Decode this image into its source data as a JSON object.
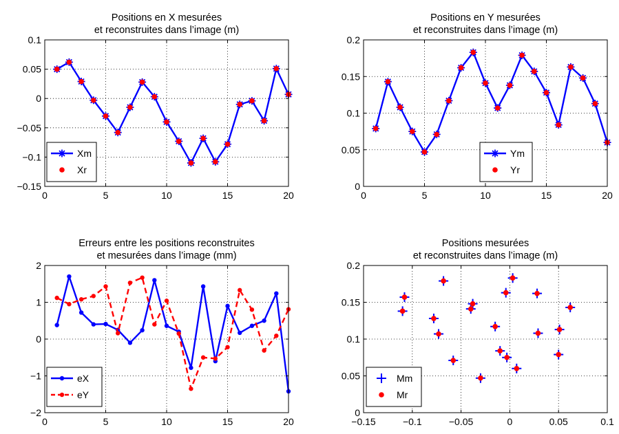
{
  "chart_data": [
    {
      "type": "line",
      "title": [
        "Positions en X mesurées",
        "et reconstruites dans l’image (m)"
      ],
      "xlim": [
        0,
        20
      ],
      "ylim": [
        -0.15,
        0.1
      ],
      "xticks": [
        0,
        5,
        10,
        15,
        20
      ],
      "xtick_labels": [
        "0",
        "5",
        "10",
        "15",
        "20"
      ],
      "yticks": [
        -0.15,
        -0.1,
        -0.05,
        0,
        0.05,
        0.1
      ],
      "ytick_labels": [
        "−0.15",
        "−0.1",
        "−0.05",
        "0",
        "0.05",
        "0.1"
      ],
      "grid": true,
      "legend_position": "bottom-left",
      "x": [
        1,
        2,
        3,
        4,
        5,
        6,
        7,
        8,
        9,
        10,
        11,
        12,
        13,
        14,
        15,
        16,
        17,
        18,
        19,
        20
      ],
      "series": [
        {
          "name": "Xm",
          "color": "#0000ff",
          "style": "solid-star",
          "values": [
            0.05,
            0.062,
            0.029,
            -0.003,
            -0.03,
            -0.058,
            -0.015,
            0.028,
            0.003,
            -0.04,
            -0.073,
            -0.11,
            -0.068,
            -0.108,
            -0.078,
            -0.01,
            -0.004,
            -0.038,
            0.051,
            0.007
          ]
        },
        {
          "name": "Xr",
          "color": "#ff0000",
          "style": "dot",
          "values": [
            0.05,
            0.062,
            0.029,
            -0.003,
            -0.03,
            -0.058,
            -0.015,
            0.028,
            0.003,
            -0.04,
            -0.073,
            -0.11,
            -0.068,
            -0.108,
            -0.078,
            -0.01,
            -0.004,
            -0.038,
            0.051,
            0.007
          ]
        }
      ]
    },
    {
      "type": "line",
      "title": [
        "Positions en Y  mesurées",
        "et reconstruites dans l’image (m)"
      ],
      "xlim": [
        0,
        20
      ],
      "ylim": [
        0,
        0.2
      ],
      "xticks": [
        0,
        5,
        10,
        15,
        20
      ],
      "xtick_labels": [
        "0",
        "5",
        "10",
        "15",
        "20"
      ],
      "yticks": [
        0,
        0.05,
        0.1,
        0.15,
        0.2
      ],
      "ytick_labels": [
        "0",
        "0.05",
        "0.1",
        "0.15",
        "0.2"
      ],
      "grid": true,
      "legend_position": "bottom-right",
      "x": [
        1,
        2,
        3,
        4,
        5,
        6,
        7,
        8,
        9,
        10,
        11,
        12,
        13,
        14,
        15,
        16,
        17,
        18,
        19,
        20
      ],
      "series": [
        {
          "name": "Ym",
          "color": "#0000ff",
          "style": "solid-star",
          "values": [
            0.079,
            0.143,
            0.108,
            0.075,
            0.047,
            0.071,
            0.117,
            0.162,
            0.183,
            0.141,
            0.107,
            0.138,
            0.179,
            0.157,
            0.128,
            0.084,
            0.163,
            0.148,
            0.113,
            0.06
          ]
        },
        {
          "name": "Yr",
          "color": "#ff0000",
          "style": "dot",
          "values": [
            0.079,
            0.143,
            0.108,
            0.075,
            0.047,
            0.071,
            0.117,
            0.162,
            0.183,
            0.141,
            0.107,
            0.138,
            0.179,
            0.157,
            0.128,
            0.084,
            0.163,
            0.148,
            0.113,
            0.06
          ]
        }
      ]
    },
    {
      "type": "line",
      "title": [
        "Erreurs entre les positions reconstruites",
        "et mesurées dans l’image (mm)"
      ],
      "xlim": [
        0,
        20
      ],
      "ylim": [
        -2,
        2
      ],
      "xticks": [
        0,
        5,
        10,
        15,
        20
      ],
      "xtick_labels": [
        "0",
        "5",
        "10",
        "15",
        "20"
      ],
      "yticks": [
        -2,
        -1,
        0,
        1,
        2
      ],
      "ytick_labels": [
        "−2",
        "−1",
        "0",
        "1",
        "2"
      ],
      "grid": true,
      "legend_position": "bottom-left",
      "x": [
        1,
        2,
        3,
        4,
        5,
        6,
        7,
        8,
        9,
        10,
        11,
        12,
        13,
        14,
        15,
        16,
        17,
        18,
        19,
        20
      ],
      "series": [
        {
          "name": "eX",
          "color": "#0000ff",
          "style": "solid-dot",
          "values": [
            0.38,
            1.7,
            0.72,
            0.4,
            0.41,
            0.25,
            -0.1,
            0.24,
            1.6,
            0.36,
            0.2,
            -0.78,
            1.43,
            -0.6,
            0.9,
            0.17,
            0.36,
            0.5,
            1.24,
            -1.42
          ]
        },
        {
          "name": "eY",
          "color": "#ff0000",
          "style": "dashed-dot",
          "values": [
            1.12,
            0.95,
            1.08,
            1.17,
            1.43,
            0.16,
            1.53,
            1.67,
            0.4,
            1.04,
            0.15,
            -1.35,
            -0.5,
            -0.53,
            -0.22,
            1.33,
            0.8,
            -0.31,
            0.09,
            0.81
          ]
        }
      ]
    },
    {
      "type": "scatter",
      "title": [
        "Positions mesurées",
        "et reconstruites dans l’image (m)"
      ],
      "xlim": [
        -0.15,
        0.1
      ],
      "ylim": [
        0,
        0.2
      ],
      "xticks": [
        -0.15,
        -0.1,
        -0.05,
        0,
        0.05,
        0.1
      ],
      "xtick_labels": [
        "−0.15",
        "−0.1",
        "−0.05",
        "0",
        "0.05",
        "0.1"
      ],
      "yticks": [
        0,
        0.05,
        0.1,
        0.15,
        0.2
      ],
      "ytick_labels": [
        "0",
        "0.05",
        "0.1",
        "0.15",
        "0.2"
      ],
      "grid": true,
      "legend_position": "bottom-left",
      "series": [
        {
          "name": "Mm",
          "color": "#0000ff",
          "style": "plus",
          "x": [
            0.05,
            0.062,
            0.029,
            -0.003,
            -0.03,
            -0.058,
            -0.015,
            0.028,
            0.003,
            -0.04,
            -0.073,
            -0.11,
            -0.068,
            -0.108,
            -0.078,
            -0.01,
            -0.004,
            -0.038,
            0.051,
            0.007
          ],
          "y": [
            0.079,
            0.143,
            0.108,
            0.075,
            0.047,
            0.071,
            0.117,
            0.162,
            0.183,
            0.141,
            0.107,
            0.138,
            0.179,
            0.157,
            0.128,
            0.084,
            0.163,
            0.148,
            0.113,
            0.06
          ]
        },
        {
          "name": "Mr",
          "color": "#ff0000",
          "style": "dot",
          "x": [
            0.05,
            0.062,
            0.029,
            -0.003,
            -0.03,
            -0.058,
            -0.015,
            0.028,
            0.003,
            -0.04,
            -0.073,
            -0.11,
            -0.068,
            -0.108,
            -0.078,
            -0.01,
            -0.004,
            -0.038,
            0.051,
            0.007
          ],
          "y": [
            0.079,
            0.143,
            0.108,
            0.075,
            0.047,
            0.071,
            0.117,
            0.162,
            0.183,
            0.141,
            0.107,
            0.138,
            0.179,
            0.157,
            0.128,
            0.084,
            0.163,
            0.148,
            0.113,
            0.06
          ]
        }
      ]
    }
  ]
}
